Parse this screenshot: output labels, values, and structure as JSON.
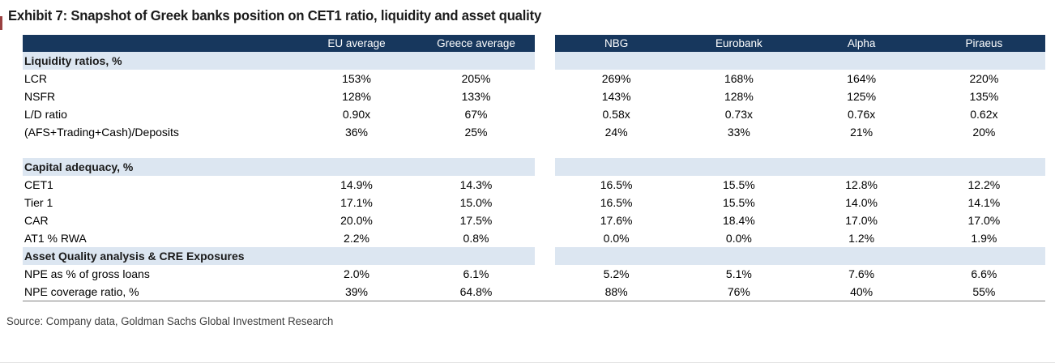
{
  "title": "Exhibit 7: Snapshot of Greek banks position on CET1 ratio, liquidity and asset quality",
  "source": "Source: Company data, Goldman Sachs Global Investment Research",
  "colors": {
    "header_bg": "#17375D",
    "header_text": "#FFFFFF",
    "section_band_bg": "#DCE6F1",
    "title_accent_red": "#994040",
    "bottom_rule": "#808080"
  },
  "table": {
    "left_headers": [
      "EU average",
      "Greece average"
    ],
    "right_headers": [
      "NBG",
      "Eurobank",
      "Alpha",
      "Piraeus"
    ],
    "sections": [
      {
        "label": "Liquidity ratios, %",
        "gap_after": true,
        "rows": [
          {
            "label": "LCR",
            "left": [
              "153%",
              "205%"
            ],
            "right": [
              "269%",
              "168%",
              "164%",
              "220%"
            ]
          },
          {
            "label": "NSFR",
            "left": [
              "128%",
              "133%"
            ],
            "right": [
              "143%",
              "128%",
              "125%",
              "135%"
            ]
          },
          {
            "label": "L/D ratio",
            "left": [
              "0.90x",
              "67%"
            ],
            "right": [
              "0.58x",
              "0.73x",
              "0.76x",
              "0.62x"
            ]
          },
          {
            "label": "(AFS+Trading+Cash)/Deposits",
            "left": [
              "36%",
              "25%"
            ],
            "right": [
              "24%",
              "33%",
              "21%",
              "20%"
            ]
          }
        ]
      },
      {
        "label": "Capital adequacy, %",
        "gap_after": false,
        "rows": [
          {
            "label": "CET1",
            "left": [
              "14.9%",
              "14.3%"
            ],
            "right": [
              "16.5%",
              "15.5%",
              "12.8%",
              "12.2%"
            ]
          },
          {
            "label": "Tier 1",
            "left": [
              "17.1%",
              "15.0%"
            ],
            "right": [
              "16.5%",
              "15.5%",
              "14.0%",
              "14.1%"
            ]
          },
          {
            "label": "CAR",
            "left": [
              "20.0%",
              "17.5%"
            ],
            "right": [
              "17.6%",
              "18.4%",
              "17.0%",
              "17.0%"
            ]
          },
          {
            "label": "AT1 % RWA",
            "left": [
              "2.2%",
              "0.8%"
            ],
            "right": [
              "0.0%",
              "0.0%",
              "1.2%",
              "1.9%"
            ]
          }
        ]
      },
      {
        "label": "Asset Quality analysis & CRE Exposures",
        "gap_after": false,
        "rows": [
          {
            "label": "NPE as % of gross loans",
            "left": [
              "2.0%",
              "6.1%"
            ],
            "right": [
              "5.2%",
              "5.1%",
              "7.6%",
              "6.6%"
            ]
          },
          {
            "label": "NPE coverage ratio, %",
            "left": [
              "39%",
              "64.8%"
            ],
            "right": [
              "88%",
              "76%",
              "40%",
              "55%"
            ]
          }
        ]
      }
    ]
  }
}
